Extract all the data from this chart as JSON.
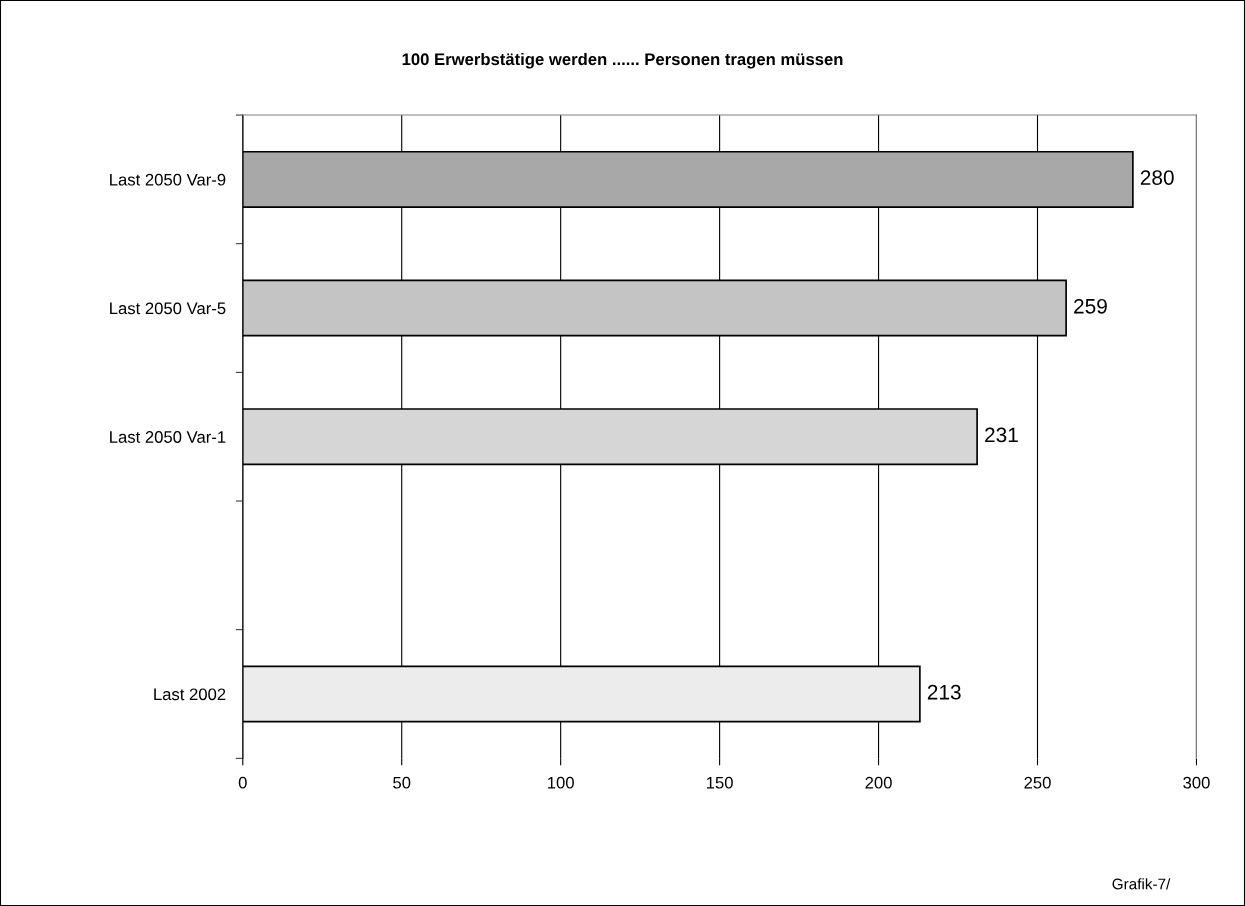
{
  "chart_data": {
    "type": "bar",
    "orientation": "horizontal",
    "title": "100 Erwerbstätige werden ...... Personen tragen müssen",
    "categories": [
      "Last 2050 Var-9",
      "Last 2050 Var-5",
      "Last 2050 Var-1",
      null,
      "Last 2002"
    ],
    "values": [
      280,
      259,
      231,
      null,
      213
    ],
    "colors": [
      "#a8a8a8",
      "#c4c4c4",
      "#d6d6d6",
      "#e8e8e8",
      "#ececec"
    ],
    "data_labels": true,
    "xlim": [
      0,
      300
    ],
    "xticks": [
      0,
      50,
      100,
      150,
      200,
      250,
      300
    ],
    "grid": "x",
    "annotations": [
      "Grafik-7/"
    ]
  }
}
